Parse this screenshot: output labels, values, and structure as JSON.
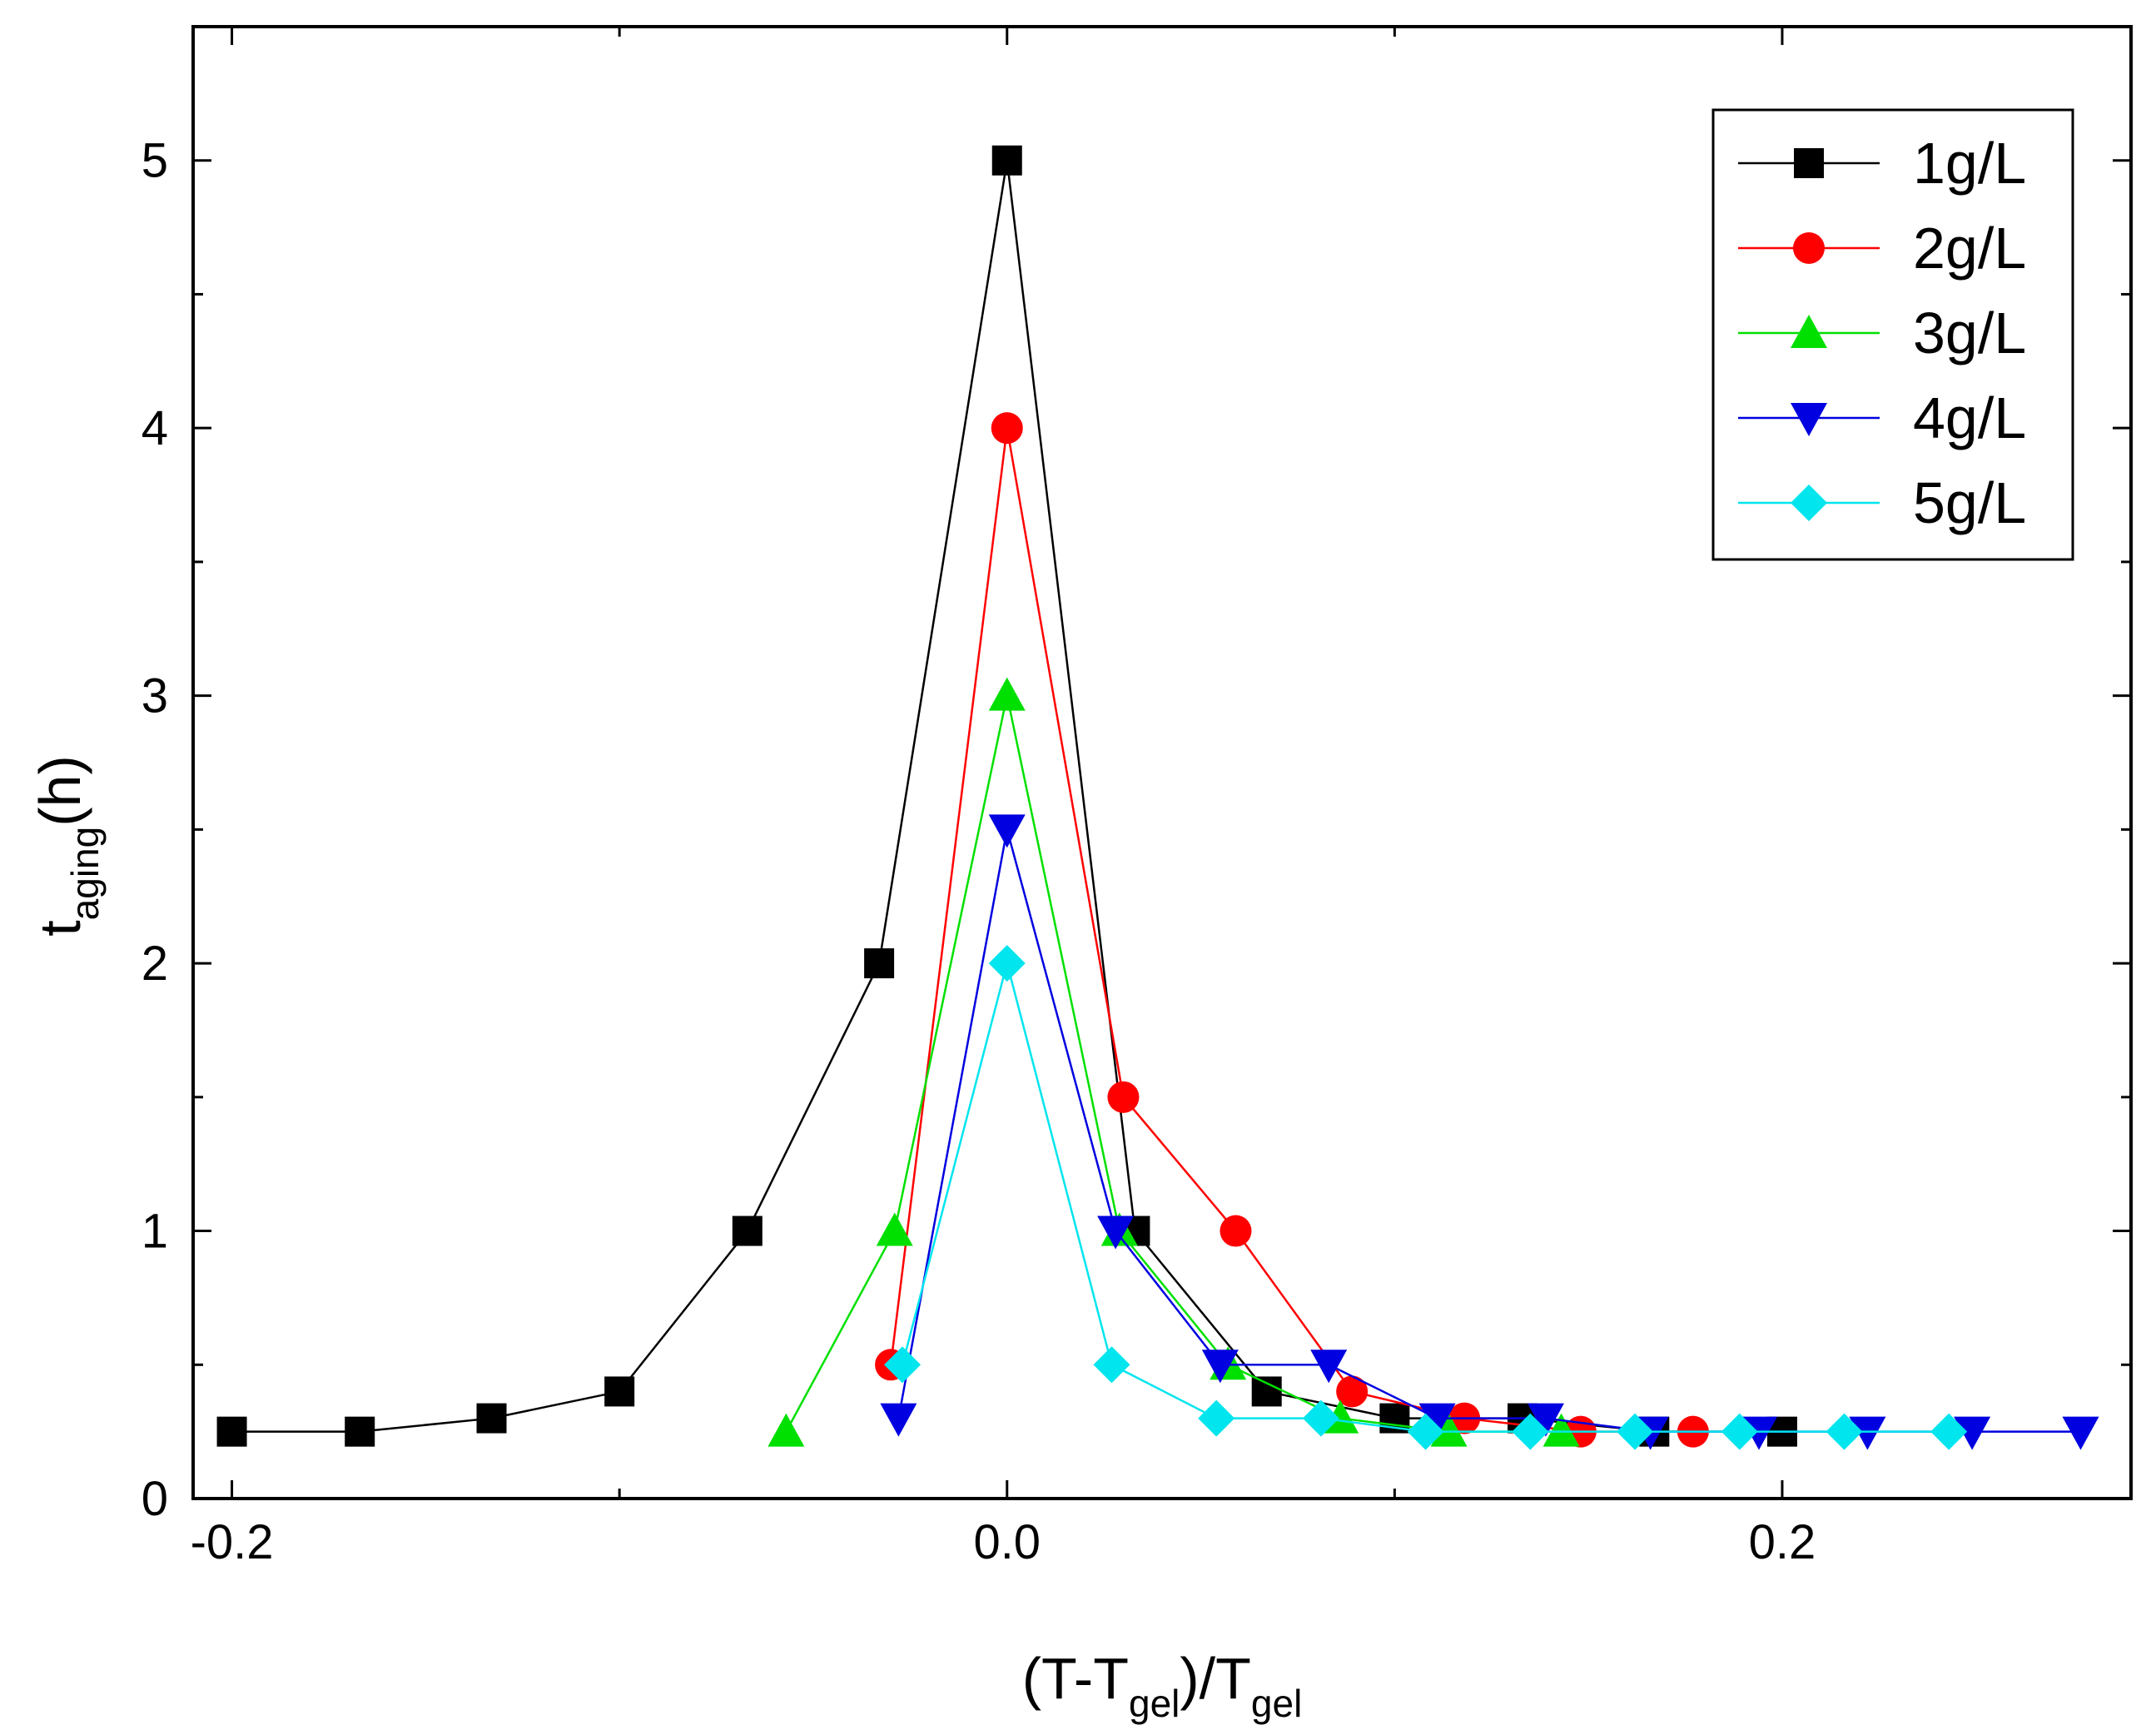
{
  "chart_data": {
    "type": "line",
    "title": "",
    "xlabel": {
      "base": "(T-T",
      "sub1": "gel",
      "mid": ")/T",
      "sub2": "gel"
    },
    "ylabel": {
      "base": "t",
      "sub": "aging",
      "suffix": "(h)"
    },
    "xlim": [
      -0.21,
      0.29
    ],
    "ylim": [
      0,
      5.5
    ],
    "xticks": [
      -0.2,
      0.0,
      0.2
    ],
    "xtick_labels": [
      "-0.2",
      "0.0",
      "0.2"
    ],
    "yticks": [
      0,
      1,
      2,
      3,
      4,
      5
    ],
    "ytick_labels": [
      "0",
      "1",
      "2",
      "3",
      "4",
      "5"
    ],
    "legend_position": "top-right",
    "series": [
      {
        "name": "1g/L",
        "color": "#000000",
        "marker": "square",
        "x": [
          -0.2,
          -0.167,
          -0.133,
          -0.1,
          -0.067,
          -0.033,
          0.0,
          0.033,
          0.067,
          0.1,
          0.133,
          0.167,
          0.2
        ],
        "y": [
          0.25,
          0.25,
          0.3,
          0.4,
          1.0,
          2.0,
          5.0,
          1.0,
          0.4,
          0.3,
          0.3,
          0.25,
          0.25
        ]
      },
      {
        "name": "2g/L",
        "color": "#ff0000",
        "marker": "circle",
        "x": [
          -0.03,
          0.0,
          0.03,
          0.059,
          0.089,
          0.118,
          0.148,
          0.177
        ],
        "y": [
          0.5,
          4.0,
          1.5,
          1.0,
          0.4,
          0.3,
          0.25,
          0.25
        ]
      },
      {
        "name": "3g/L",
        "color": "#00e000",
        "marker": "triangle-up",
        "x": [
          -0.057,
          -0.029,
          0.0,
          0.029,
          0.057,
          0.086,
          0.114,
          0.143
        ],
        "y": [
          0.25,
          1.0,
          3.0,
          1.0,
          0.5,
          0.3,
          0.25,
          0.25
        ]
      },
      {
        "name": "4g/L",
        "color": "#0000e0",
        "marker": "triangle-down",
        "x": [
          -0.028,
          0.0,
          0.028,
          0.055,
          0.083,
          0.111,
          0.139,
          0.166,
          0.194,
          0.222,
          0.249,
          0.277
        ],
        "y": [
          0.3,
          2.5,
          1.0,
          0.5,
          0.5,
          0.3,
          0.3,
          0.25,
          0.25,
          0.25,
          0.25,
          0.25
        ]
      },
      {
        "name": "5g/L",
        "color": "#00e5ee",
        "marker": "diamond",
        "x": [
          -0.027,
          0.0,
          0.027,
          0.054,
          0.081,
          0.108,
          0.135,
          0.162,
          0.189,
          0.216,
          0.243
        ],
        "y": [
          0.5,
          2.0,
          0.5,
          0.3,
          0.3,
          0.25,
          0.25,
          0.25,
          0.25,
          0.25,
          0.25
        ]
      }
    ]
  }
}
